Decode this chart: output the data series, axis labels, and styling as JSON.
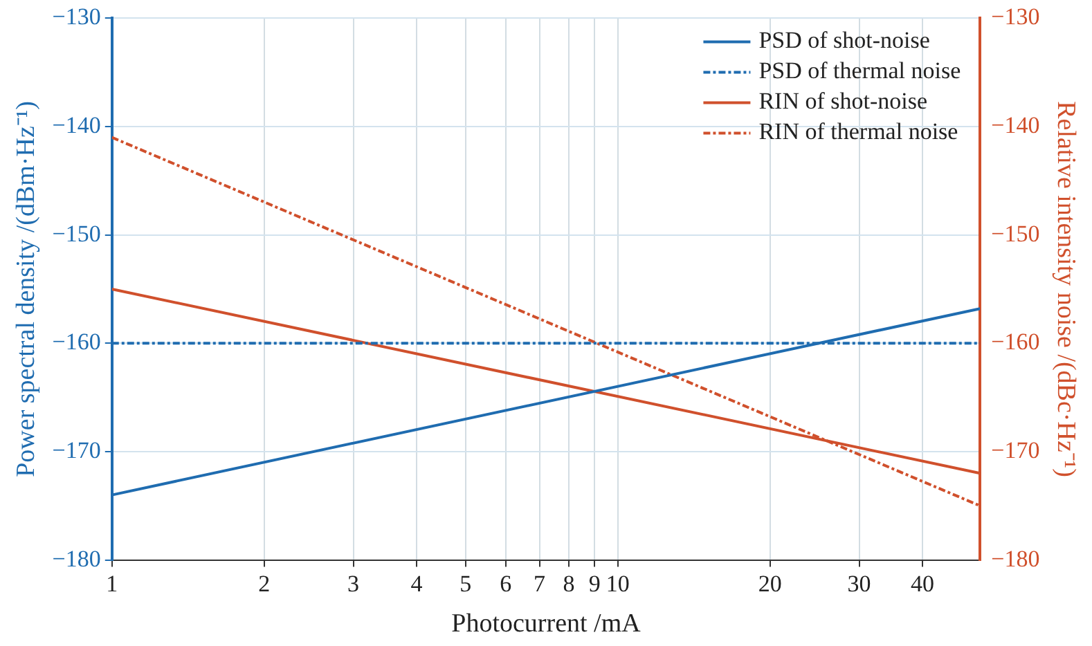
{
  "chart_data": {
    "type": "line",
    "xlabel": "Photocurrent /mA",
    "ylabel": "Power spectral density /(dBm·Hz⁻¹)",
    "y2label": "Relative intensity noise /(dBc·Hz⁻¹)",
    "log": "x",
    "xlim": [
      1,
      52
    ],
    "xticks": [
      1,
      2,
      3,
      4,
      5,
      6,
      7,
      8,
      9,
      10,
      20,
      30,
      40
    ],
    "ylim": [
      -180,
      -130
    ],
    "yticks": [
      -180,
      -170,
      -160,
      -150,
      -140,
      -130
    ],
    "y2lim": [
      -180,
      -130
    ],
    "y2ticks": [
      -180,
      -170,
      -160,
      -150,
      -140,
      -130
    ],
    "grid": true,
    "legend": "top right",
    "marker": "none",
    "x": [
      1,
      52
    ],
    "series": [
      {
        "name": "PSD of shot-noise",
        "color": "#1f6cb0",
        "values": [
          -174,
          -156.8
        ],
        "line_style": "solid"
      },
      {
        "name": "PSD of thermal noise",
        "color": "#1f6cb0",
        "values": [
          -160,
          -160
        ],
        "line_style": "dashed"
      },
      {
        "name": "RIN of shot-noise",
        "color": "#d0502c",
        "values": [
          -155,
          -172
        ],
        "line_style": "solid",
        "axis": "y2"
      },
      {
        "name": "RIN of thermal noise",
        "color": "#d0502c",
        "values": [
          -141,
          -175
        ],
        "line_style": "dashed",
        "axis": "y2"
      }
    ]
  }
}
